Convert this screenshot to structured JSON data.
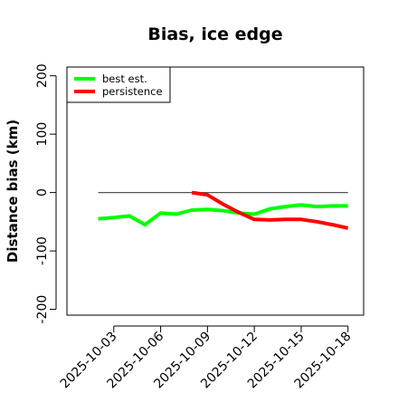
{
  "chart_data": {
    "type": "line",
    "title": "Bias, ice edge",
    "xlabel": "",
    "ylabel": "Distance bias (km)",
    "x_tick_labels": [
      "2025-10-03",
      "2025-10-06",
      "2025-10-09",
      "2025-10-12",
      "2025-10-15",
      "2025-10-18"
    ],
    "x_tick_values": [
      "2025-10-03",
      "2025-10-06",
      "2025-10-09",
      "2025-10-12",
      "2025-10-15",
      "2025-10-18"
    ],
    "xlim": [
      "2025-09-30",
      "2025-10-19"
    ],
    "y_tick_labels": [
      "-200",
      "-100",
      "0",
      "100",
      "200"
    ],
    "y_tick_values": [
      -200,
      -100,
      0,
      100,
      200
    ],
    "ylim": [
      -210,
      215
    ],
    "grid": false,
    "legend_position": "top-left",
    "reference_line": {
      "y": 0,
      "x": [
        "2025-10-02",
        "2025-10-18"
      ],
      "color": "#555555"
    },
    "series": [
      {
        "name": "best est.",
        "color": "#00ff00",
        "x": [
          "2025-10-02",
          "2025-10-03",
          "2025-10-04",
          "2025-10-05",
          "2025-10-06",
          "2025-10-07",
          "2025-10-08",
          "2025-10-09",
          "2025-10-10",
          "2025-10-11",
          "2025-10-12",
          "2025-10-13",
          "2025-10-14",
          "2025-10-15",
          "2025-10-16",
          "2025-10-17",
          "2025-10-18"
        ],
        "values": [
          -45,
          -43,
          -40,
          -55,
          -35,
          -37,
          -30,
          -29,
          -31,
          -35,
          -37,
          -28,
          -24,
          -21,
          -24,
          -23,
          -23
        ]
      },
      {
        "name": "persistence",
        "color": "#ff0000",
        "x": [
          "2025-10-08",
          "2025-10-09",
          "2025-10-10",
          "2025-10-11",
          "2025-10-12",
          "2025-10-13",
          "2025-10-14",
          "2025-10-15",
          "2025-10-16",
          "2025-10-17",
          "2025-10-18"
        ],
        "values": [
          0,
          -4,
          -20,
          -34,
          -46,
          -47,
          -46,
          -46,
          -50,
          -55,
          -61
        ]
      }
    ]
  }
}
